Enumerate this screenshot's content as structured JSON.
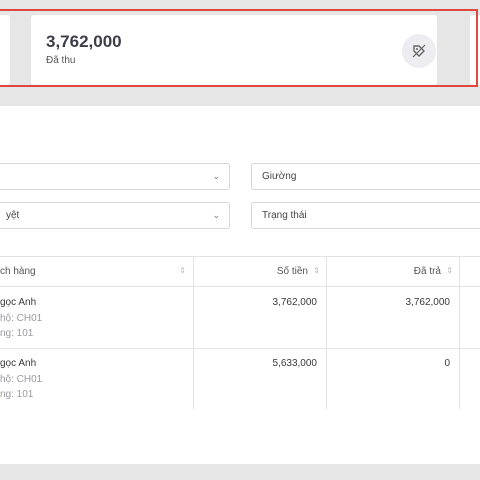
{
  "stats": {
    "paid_value": "3,762,000",
    "paid_label": "Đã thu",
    "paid_icon": "tag-icon"
  },
  "filters": {
    "left_top_value": "",
    "bed_placeholder": "Giường",
    "left_bottom_value": "yệt",
    "status_placeholder": "Trạng thái"
  },
  "table": {
    "headers": {
      "customer": "ch hàng",
      "amount": "Số tiền",
      "paid": "Đã trả"
    },
    "rows": [
      {
        "name": "gọc Anh",
        "apartment": "hộ: CH01",
        "room": "ng: 101",
        "amount": "3,762,000",
        "paid": "3,762,000"
      },
      {
        "name": "gọc Anh",
        "apartment": "hộ: CH01",
        "room": "ng: 101",
        "amount": "5,633,000",
        "paid": "0"
      }
    ]
  }
}
